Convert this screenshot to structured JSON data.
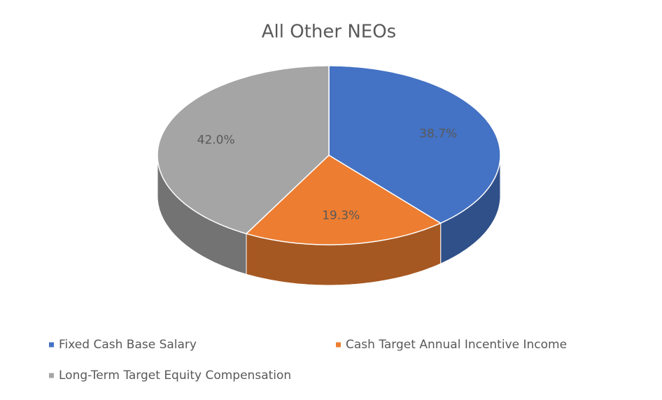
{
  "chart_data": {
    "type": "pie3d",
    "title": "All Other NEOs",
    "categories": [
      "Fixed Cash Base Salary",
      "Cash Target Annual Incentive Income",
      "Long-Term Target Equity Compensation"
    ],
    "values": [
      38.7,
      19.3,
      42.0
    ],
    "value_labels": [
      "38.7%",
      "19.3%",
      "42.0%"
    ],
    "colors": [
      "#4472c4",
      "#ed7d31",
      "#a5a5a5"
    ],
    "legend": "bottom"
  }
}
